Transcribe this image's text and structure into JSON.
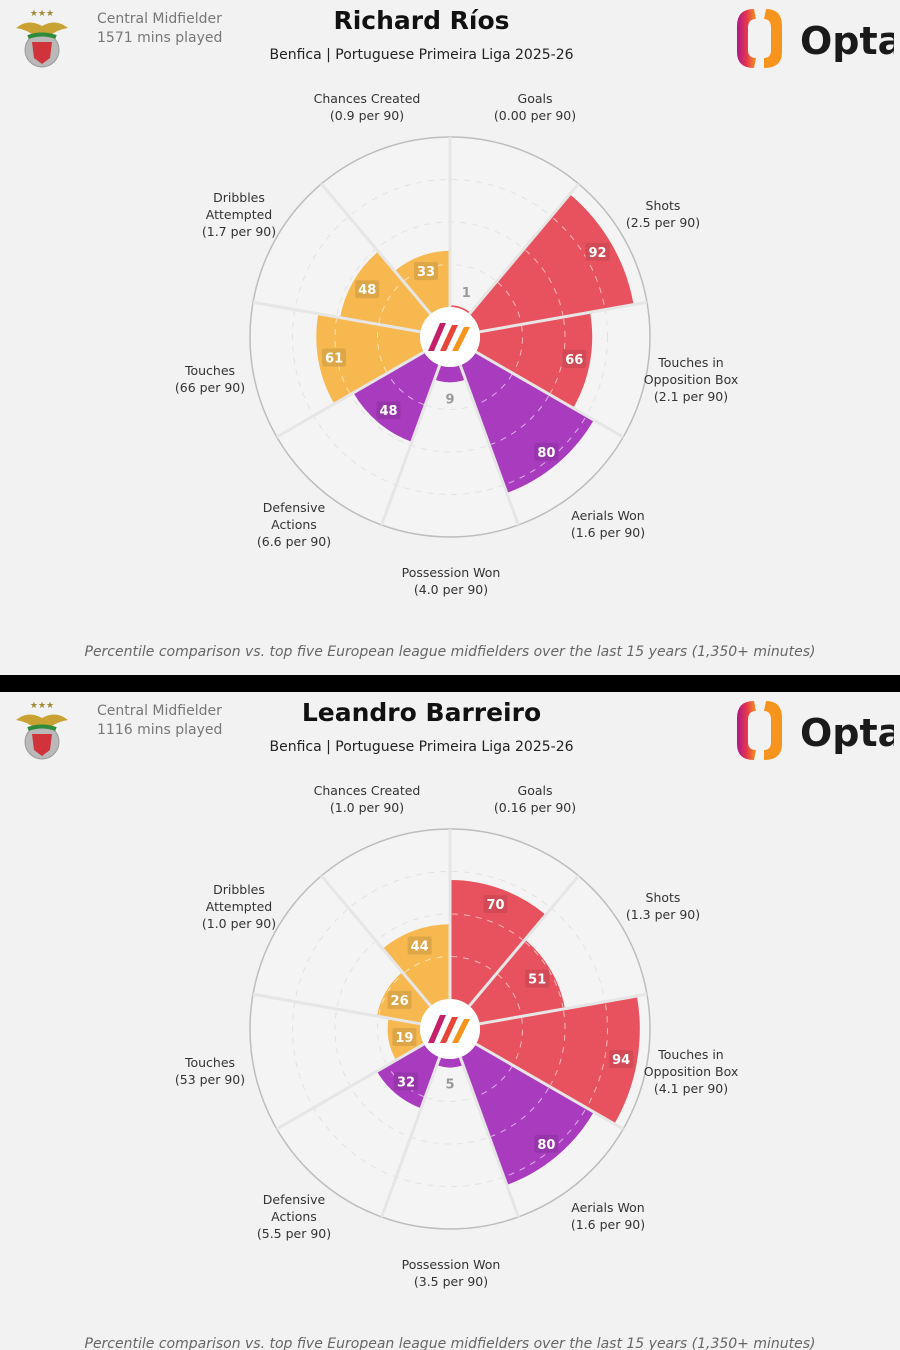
{
  "colors": {
    "attack": "#e8525e",
    "defense": "#a93bbf",
    "possession": "#f6b84f",
    "background": "#f2f2f2"
  },
  "icons": {
    "club": "benfica-crest-icon",
    "brand": "opta-logo-icon",
    "center": "opta-mark-icon"
  },
  "brand": "Opta",
  "chart_data": [
    {
      "type": "pizza",
      "title": "Richard Ríos",
      "subtitle": "Benfica | Portuguese Primeira Liga 2025-26",
      "position": "Central Midfielder",
      "minutes": "1571 mins played",
      "footnote": "Percentile comparison vs. top five European league midfielders over the last 15 years (1,350+ minutes)",
      "metrics": [
        {
          "name": "Goals",
          "per90": "(0.00 per 90)",
          "percentile": 1,
          "group": "attack"
        },
        {
          "name": "Shots",
          "per90": "(2.5 per 90)",
          "percentile": 92,
          "group": "attack"
        },
        {
          "name": "Touches in\nOpposition Box",
          "per90": "(2.1 per 90)",
          "percentile": 66,
          "group": "attack"
        },
        {
          "name": "Aerials Won",
          "per90": "(1.6 per 90)",
          "percentile": 80,
          "group": "defense"
        },
        {
          "name": "Possession Won",
          "per90": "(4.0 per 90)",
          "percentile": 9,
          "group": "defense"
        },
        {
          "name": "Defensive\nActions",
          "per90": "(6.6 per 90)",
          "percentile": 48,
          "group": "defense"
        },
        {
          "name": "Touches",
          "per90": "(66 per 90)",
          "percentile": 61,
          "group": "possession"
        },
        {
          "name": "Dribbles\nAttempted",
          "per90": "(1.7 per 90)",
          "percentile": 48,
          "group": "possession"
        },
        {
          "name": "Chances Created",
          "per90": "(0.9 per 90)",
          "percentile": 33,
          "group": "possession"
        }
      ]
    },
    {
      "type": "pizza",
      "title": "Leandro Barreiro",
      "subtitle": "Benfica | Portuguese Primeira Liga 2025-26",
      "position": "Central Midfielder",
      "minutes": "1116 mins played",
      "footnote": "Percentile comparison vs. top five European league midfielders over the last 15 years (1,350+ minutes)",
      "metrics": [
        {
          "name": "Goals",
          "per90": "(0.16 per 90)",
          "percentile": 70,
          "group": "attack"
        },
        {
          "name": "Shots",
          "per90": "(1.3 per 90)",
          "percentile": 51,
          "group": "attack"
        },
        {
          "name": "Touches in\nOpposition Box",
          "per90": "(4.1 per 90)",
          "percentile": 94,
          "group": "attack"
        },
        {
          "name": "Aerials Won",
          "per90": "(1.6 per 90)",
          "percentile": 80,
          "group": "defense"
        },
        {
          "name": "Possession Won",
          "per90": "(3.5 per 90)",
          "percentile": 5,
          "group": "defense"
        },
        {
          "name": "Defensive\nActions",
          "per90": "(5.5 per 90)",
          "percentile": 32,
          "group": "defense"
        },
        {
          "name": "Touches",
          "per90": "(53 per 90)",
          "percentile": 19,
          "group": "possession"
        },
        {
          "name": "Dribbles\nAttempted",
          "per90": "(1.0 per 90)",
          "percentile": 26,
          "group": "possession"
        },
        {
          "name": "Chances Created",
          "per90": "(1.0 per 90)",
          "percentile": 44,
          "group": "possession"
        }
      ]
    }
  ]
}
